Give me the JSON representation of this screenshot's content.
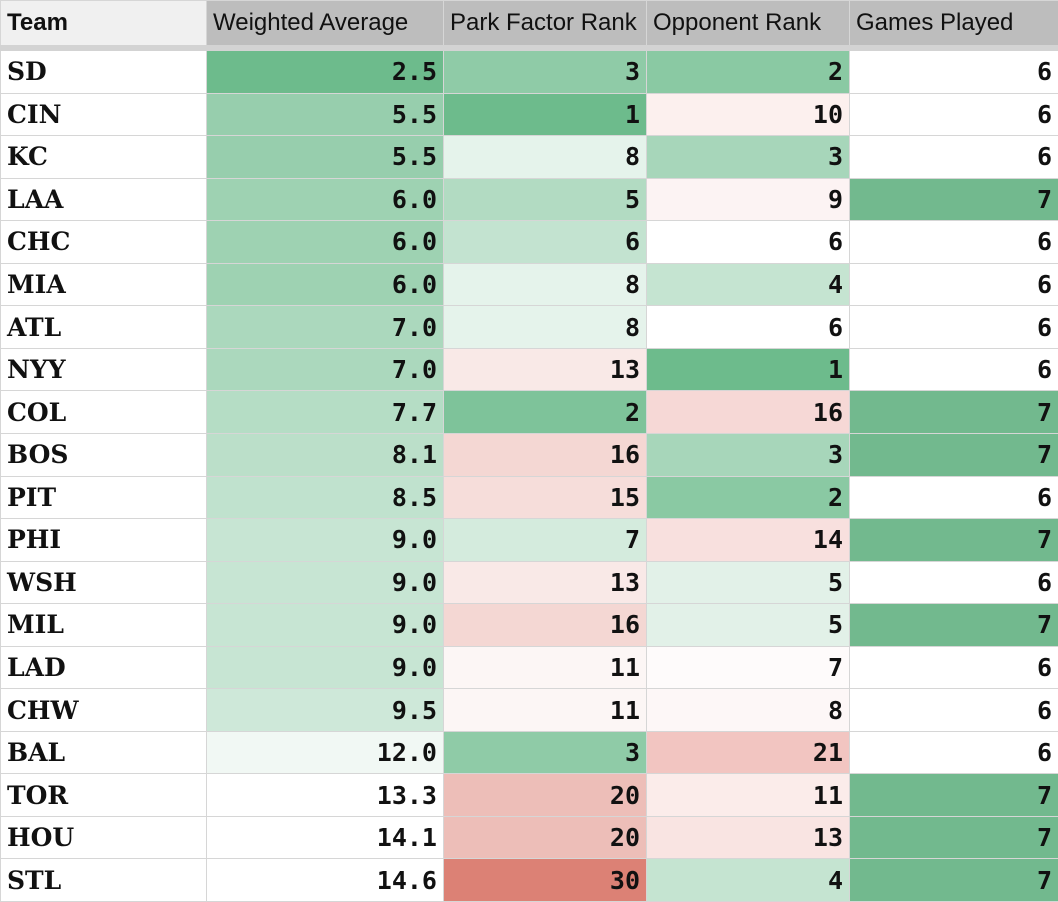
{
  "headers": [
    "Team",
    "Weighted Average",
    "Park Factor Rank",
    "Opponent Rank",
    "Games Played"
  ],
  "colors": {
    "weighted_average": {
      "low": "#6dbb8c",
      "high": "#ffffff"
    },
    "park_factor_rank": {
      "low": "#6dbb8c",
      "mid": "#ffffff",
      "high": "#dc8175"
    },
    "opponent_rank": {
      "low": "#6dbb8c",
      "mid": "#ffffff",
      "high": "#f2c5c1"
    },
    "games_played": {
      "highlight": "#72b98e",
      "default": "#ffffff"
    }
  },
  "rows": [
    {
      "team": "SD",
      "weighted_average": "2.5",
      "park_factor_rank": "3",
      "opponent_rank": "2",
      "games_played": "6"
    },
    {
      "team": "CIN",
      "weighted_average": "5.5",
      "park_factor_rank": "1",
      "opponent_rank": "10",
      "games_played": "6"
    },
    {
      "team": "KC",
      "weighted_average": "5.5",
      "park_factor_rank": "8",
      "opponent_rank": "3",
      "games_played": "6"
    },
    {
      "team": "LAA",
      "weighted_average": "6.0",
      "park_factor_rank": "5",
      "opponent_rank": "9",
      "games_played": "7"
    },
    {
      "team": "CHC",
      "weighted_average": "6.0",
      "park_factor_rank": "6",
      "opponent_rank": "6",
      "games_played": "6"
    },
    {
      "team": "MIA",
      "weighted_average": "6.0",
      "park_factor_rank": "8",
      "opponent_rank": "4",
      "games_played": "6"
    },
    {
      "team": "ATL",
      "weighted_average": "7.0",
      "park_factor_rank": "8",
      "opponent_rank": "6",
      "games_played": "6"
    },
    {
      "team": "NYY",
      "weighted_average": "7.0",
      "park_factor_rank": "13",
      "opponent_rank": "1",
      "games_played": "6"
    },
    {
      "team": "COL",
      "weighted_average": "7.7",
      "park_factor_rank": "2",
      "opponent_rank": "16",
      "games_played": "7"
    },
    {
      "team": "BOS",
      "weighted_average": "8.1",
      "park_factor_rank": "16",
      "opponent_rank": "3",
      "games_played": "7"
    },
    {
      "team": "PIT",
      "weighted_average": "8.5",
      "park_factor_rank": "15",
      "opponent_rank": "2",
      "games_played": "6"
    },
    {
      "team": "PHI",
      "weighted_average": "9.0",
      "park_factor_rank": "7",
      "opponent_rank": "14",
      "games_played": "7"
    },
    {
      "team": "WSH",
      "weighted_average": "9.0",
      "park_factor_rank": "13",
      "opponent_rank": "5",
      "games_played": "6"
    },
    {
      "team": "MIL",
      "weighted_average": "9.0",
      "park_factor_rank": "16",
      "opponent_rank": "5",
      "games_played": "7"
    },
    {
      "team": "LAD",
      "weighted_average": "9.0",
      "park_factor_rank": "11",
      "opponent_rank": "7",
      "games_played": "6"
    },
    {
      "team": "CHW",
      "weighted_average": "9.5",
      "park_factor_rank": "11",
      "opponent_rank": "8",
      "games_played": "6"
    },
    {
      "team": "BAL",
      "weighted_average": "12.0",
      "park_factor_rank": "3",
      "opponent_rank": "21",
      "games_played": "6"
    },
    {
      "team": "TOR",
      "weighted_average": "13.3",
      "park_factor_rank": "20",
      "opponent_rank": "11",
      "games_played": "7"
    },
    {
      "team": "HOU",
      "weighted_average": "14.1",
      "park_factor_rank": "20",
      "opponent_rank": "13",
      "games_played": "7"
    },
    {
      "team": "STL",
      "weighted_average": "14.6",
      "park_factor_rank": "30",
      "opponent_rank": "4",
      "games_played": "7"
    }
  ]
}
